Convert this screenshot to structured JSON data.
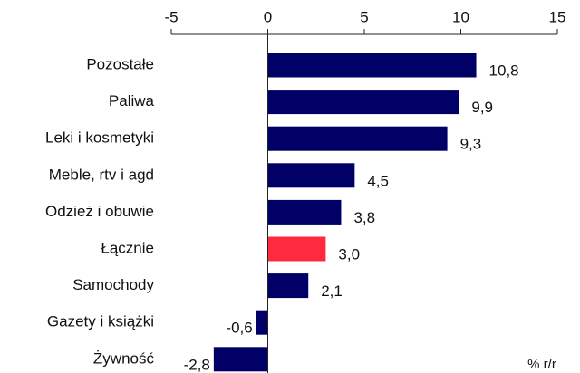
{
  "chart_data": {
    "type": "barh",
    "categories": [
      "Pozostałe",
      "Paliwa",
      "Leki i kosmetyki",
      "Meble, rtv i agd",
      "Odzież i obuwie",
      "Łącznie",
      "Samochody",
      "Gazety i książki",
      "Żywność"
    ],
    "values": [
      10.8,
      9.9,
      9.3,
      4.5,
      3.8,
      3.0,
      2.1,
      -0.6,
      -2.8
    ],
    "value_labels": [
      "10,8",
      "9,9",
      "9,3",
      "4,5",
      "3,8",
      "3,0",
      "2,1",
      "-0,6",
      "-2,8"
    ],
    "colors": [
      "#000066",
      "#000066",
      "#000066",
      "#000066",
      "#000066",
      "#ff2a3d",
      "#000066",
      "#000066",
      "#000066"
    ],
    "xlim": [
      -5,
      15
    ],
    "xticks": [
      -5,
      0,
      5,
      10,
      15
    ],
    "unit_label": "% r/r"
  }
}
